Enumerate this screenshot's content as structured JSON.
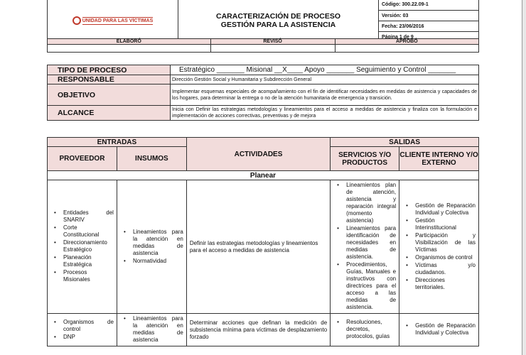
{
  "header": {
    "logo_text": "UNIDAD PARA LAS VÍCTIMAS",
    "title_line1": "CARACTERIZACIÓN DE PROCESO",
    "title_line2": "GESTIÓN PARA LA ASISTENCIA",
    "codigo": "Código: 300.22.09-1",
    "version": "Versión: 03",
    "fecha": "Fecha: 23/06/2016",
    "pagina": "Página 1 de 9"
  },
  "signatures": {
    "elaboro": "ELABORÓ",
    "reviso": "REVISÓ",
    "aprobo": "APROBÓ"
  },
  "process": {
    "tipo_label": "TIPO DE PROCESO",
    "tipo_value": "Estratégico _______ Misional __X____ Apoyo _______ Seguimiento y Control _______",
    "responsable_label": "RESPONSABLE",
    "responsable_value": "Dirección Gestión Social y Humanitaria y Subdirección General",
    "objetivo_label": "OBJETIVO",
    "objetivo_value": "Implementar esquemas especiales de acompañamiento con el fin de identificar necesidades en medidas de asistencia y capacidades de los hogares, para determinar la entrega o no de la atención humanitaria de emergencia y transición.",
    "alcance_label": "ALCANCE",
    "alcance_value": "Inicia con Definir las estrategias metodologías y lineamientos para el acceso a medidas de asistencia y finaliza con la formulación e implementación de acciones correctivas, preventivas y de mejora"
  },
  "matrix": {
    "entradas": "ENTRADAS",
    "salidas": "SALIDAS",
    "proveedor": "PROVEEDOR",
    "insumos": "INSUMOS",
    "actividades": "ACTIVIDADES",
    "servicios": "SERVICIOS Y/O PRODUCTOS",
    "cliente": "CLIENTE INTERNO Y/O EXTERNO",
    "phase": "Planear",
    "rows": [
      {
        "proveedor": [
          "Entidades del SNARIV",
          "Corte Constitucional",
          "Direccionamiento Estratégico",
          "Planeación Estratégica",
          "Procesos Misionales"
        ],
        "insumos": [
          "Lineamientos para la atención en medidas de asistencia",
          "Normatividad"
        ],
        "actividad": "Definir las estrategias metodologías y lineamientos para el acceso a medidas de asistencia",
        "servicios": [
          "Lineamientos plan de atención, asistencia y reparación integral (momento asistencia)",
          "Lineamientos para identificación de necesidades en medidas de asistencia.",
          "Procedimientos, Guías, Manuales e instructivos con directrices para el acceso a las medidas de asistencia."
        ],
        "cliente": [
          "Gestión de Reparación Individual y Colectiva",
          "Gestión Interinstitucional",
          "Participación y Visibilización de las Víctimas",
          "Organismos de control",
          "Víctimas y/o ciudadanos.",
          "Direcciones territoriales."
        ]
      },
      {
        "proveedor": [
          "Organismos de control",
          "DNP"
        ],
        "insumos": [
          "Lineamientos para la atención en medidas de asistencia"
        ],
        "actividad": "Determinar acciones que definan la medición de subsistencia mínima para víctimas de desplazamiento forzado",
        "servicios": [
          "Resoluciones, decretos, protocolos, guías"
        ],
        "cliente": [
          "Gestión de Reparación Individual y Colectiva"
        ]
      }
    ]
  }
}
